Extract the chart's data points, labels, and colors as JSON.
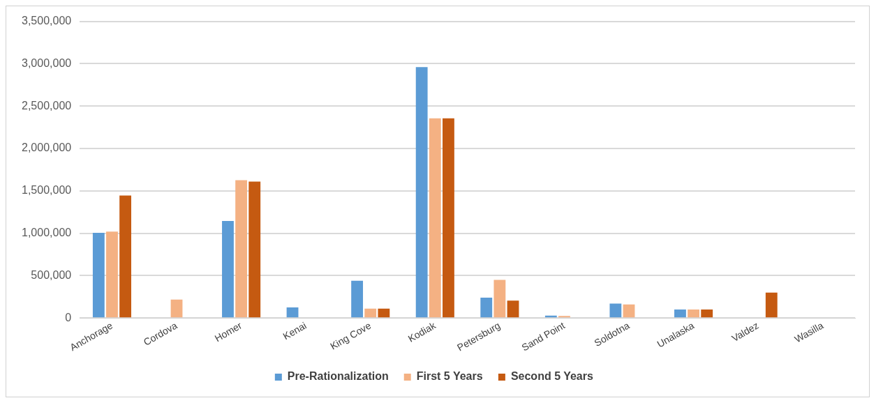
{
  "chart_data": {
    "type": "bar",
    "categories": [
      "Anchorage",
      "Cordova",
      "Homer",
      "Kenai",
      "King Cove",
      "Kodiak",
      "Petersburg",
      "Sand Point",
      "Soldotna",
      "Unalaska",
      "Valdez",
      "Wasilla"
    ],
    "series": [
      {
        "name": "Pre-Rationalization",
        "color": "#5b9bd5",
        "values": [
          1005000,
          null,
          1145000,
          125000,
          440000,
          2960000,
          240000,
          28000,
          170000,
          100000,
          null,
          null
        ]
      },
      {
        "name": "First 5 Years",
        "color": "#f4b183",
        "values": [
          1020000,
          218000,
          1625000,
          null,
          110000,
          2355000,
          450000,
          25000,
          160000,
          100000,
          null,
          null
        ]
      },
      {
        "name": "Second 5 Years",
        "color": "#c55a11",
        "values": [
          1445000,
          null,
          1610000,
          null,
          110000,
          2355000,
          205000,
          null,
          null,
          100000,
          300000,
          null
        ]
      }
    ],
    "ylim": [
      0,
      3500000
    ],
    "yticks": [
      {
        "value": 0,
        "label": "0"
      },
      {
        "value": 500000,
        "label": "500,000"
      },
      {
        "value": 1000000,
        "label": "1,000,000"
      },
      {
        "value": 1500000,
        "label": "1,500,000"
      },
      {
        "value": 2000000,
        "label": "2,000,000"
      },
      {
        "value": 2500000,
        "label": "2,500,000"
      },
      {
        "value": 3000000,
        "label": "3,000,000"
      },
      {
        "value": 3500000,
        "label": "3,500,000"
      }
    ],
    "grid": "y",
    "legend": "bottom"
  }
}
